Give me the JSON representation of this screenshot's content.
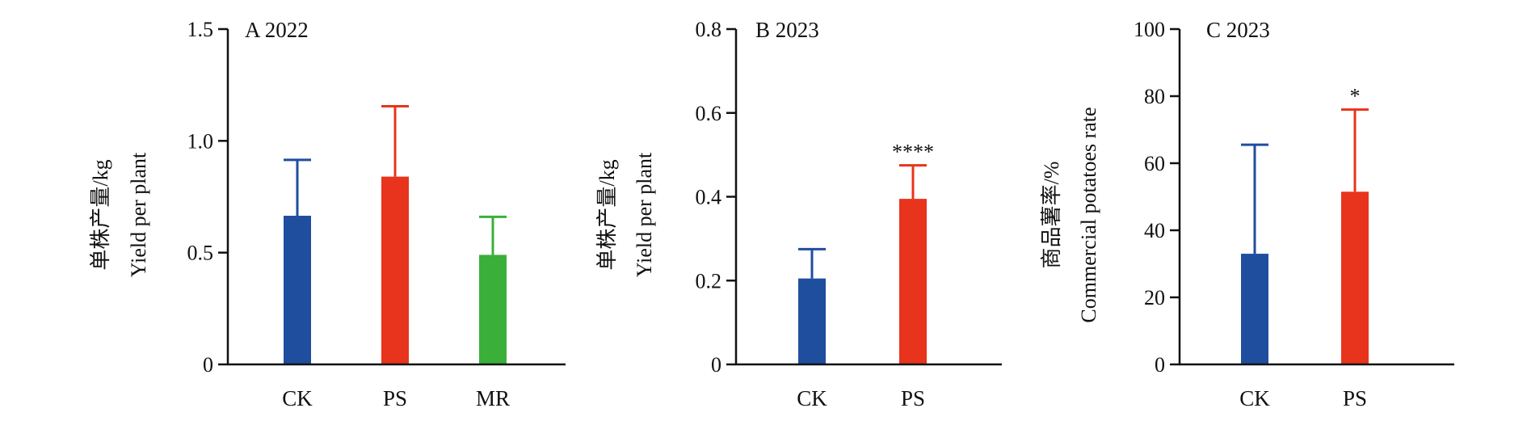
{
  "chart_data": [
    {
      "type": "bar",
      "title": "A 2022",
      "ylabel_cn": "单株产量/kg",
      "ylabel": "Yield per plant",
      "categories": [
        "CK",
        "PS",
        "MR"
      ],
      "values": [
        0.665,
        0.84,
        0.49
      ],
      "errors": [
        0.25,
        0.315,
        0.17
      ],
      "colors": [
        "#1f4e9e",
        "#e8341c",
        "#3aaf3a"
      ],
      "significance": [
        "",
        "",
        ""
      ],
      "ylim": [
        0,
        1.5
      ],
      "yticks": [
        0,
        0.5,
        1.0,
        1.5
      ],
      "ytick_labels": [
        "0",
        "0.5",
        "1.0",
        "1.5"
      ]
    },
    {
      "type": "bar",
      "title": "B 2023",
      "ylabel_cn": "单株产量/kg",
      "ylabel": "Yield per plant",
      "categories": [
        "CK",
        "PS"
      ],
      "values": [
        0.205,
        0.395
      ],
      "errors": [
        0.07,
        0.08
      ],
      "colors": [
        "#1f4e9e",
        "#e8341c"
      ],
      "significance": [
        "",
        "****"
      ],
      "ylim": [
        0,
        0.8
      ],
      "yticks": [
        0,
        0.2,
        0.4,
        0.6,
        0.8
      ],
      "ytick_labels": [
        "0",
        "0.2",
        "0.4",
        "0.6",
        "0.8"
      ]
    },
    {
      "type": "bar",
      "title": "C 2023",
      "ylabel_cn": "商品薯率/%",
      "ylabel": "Commercial potatoes rate",
      "categories": [
        "CK",
        "PS"
      ],
      "values": [
        33,
        51.5
      ],
      "errors": [
        32.5,
        24.5
      ],
      "colors": [
        "#1f4e9e",
        "#e8341c"
      ],
      "significance": [
        "",
        "*"
      ],
      "ylim": [
        0,
        100
      ],
      "yticks": [
        0,
        20,
        40,
        60,
        80,
        100
      ],
      "ytick_labels": [
        "0",
        "20",
        "40",
        "60",
        "80",
        "100"
      ]
    }
  ]
}
